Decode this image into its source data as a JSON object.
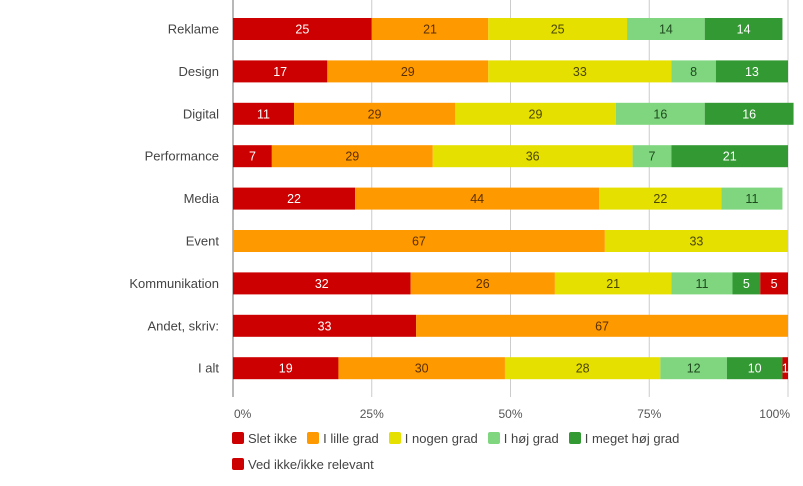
{
  "chart_data": {
    "type": "bar",
    "orientation": "horizontal",
    "stacked": "percent",
    "title": "",
    "xlabel": "",
    "ylabel": "",
    "xlim": [
      0,
      100
    ],
    "grid": true,
    "legend_position": "bottom",
    "categories": [
      "Reklame",
      "Design",
      "Digital",
      "Performance",
      "Media",
      "Event",
      "Kommunikation",
      "Andet, skriv:",
      "I alt"
    ],
    "x_ticks": [
      "0%",
      "25%",
      "50%",
      "75%",
      "100%"
    ],
    "series": [
      {
        "name": "Slet ikke",
        "color": "#cc0000",
        "label_color": "#ffffff",
        "values": [
          25,
          17,
          11,
          7,
          22,
          0,
          32,
          33,
          19
        ]
      },
      {
        "name": "I lille grad",
        "color": "#ff9900",
        "label_color": "#5a3000",
        "values": [
          21,
          29,
          29,
          29,
          44,
          67,
          26,
          67,
          30
        ]
      },
      {
        "name": "I nogen grad",
        "color": "#e6e000",
        "label_color": "#4a4700",
        "values": [
          25,
          33,
          29,
          36,
          22,
          33,
          21,
          0,
          28
        ]
      },
      {
        "name": "I høj grad",
        "color": "#7fd67f",
        "label_color": "#1f4a1f",
        "values": [
          14,
          8,
          16,
          7,
          11,
          0,
          11,
          0,
          12
        ]
      },
      {
        "name": "I meget høj grad",
        "color": "#339933",
        "label_color": "#ffffff",
        "values": [
          14,
          13,
          16,
          21,
          0,
          0,
          5,
          0,
          10
        ]
      },
      {
        "name": "Ved ikke/ikke relevant",
        "color": "#cc0000",
        "label_color": "#ffffff",
        "values": [
          0,
          0,
          0,
          0,
          0,
          0,
          5,
          0,
          1
        ]
      }
    ]
  }
}
